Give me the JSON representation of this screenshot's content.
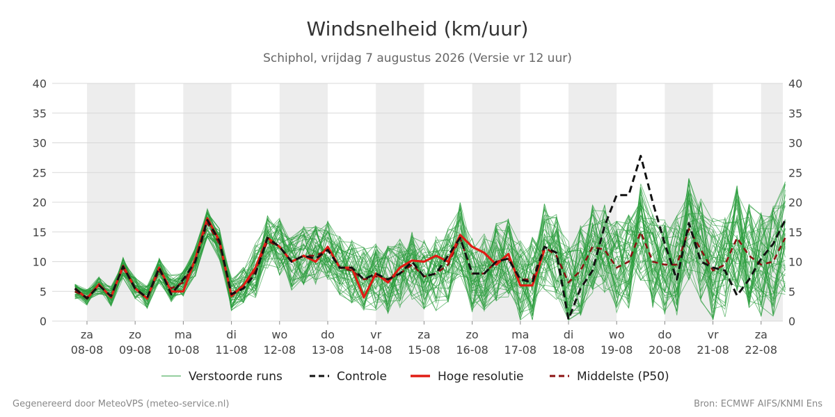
{
  "chart_data": {
    "type": "line",
    "title": "Windsnelheid (km/uur)",
    "subtitle": "Schiphol, vrijdag  7 augustus 2026 (Versie vr 12 uur)",
    "ylim": [
      0,
      40
    ],
    "yticks": [
      0,
      5,
      10,
      15,
      20,
      25,
      30,
      35,
      40
    ],
    "xlim_days": [
      -0.75,
      14.5
    ],
    "x_ticks": [
      {
        "day": "za",
        "date": "08-08"
      },
      {
        "day": "zo",
        "date": "09-08"
      },
      {
        "day": "ma",
        "date": "10-08"
      },
      {
        "day": "di",
        "date": "11-08"
      },
      {
        "day": "wo",
        "date": "12-08"
      },
      {
        "day": "do",
        "date": "13-08"
      },
      {
        "day": "vr",
        "date": "14-08"
      },
      {
        "day": "za",
        "date": "15-08"
      },
      {
        "day": "zo",
        "date": "16-08"
      },
      {
        "day": "ma",
        "date": "17-08"
      },
      {
        "day": "di",
        "date": "18-08"
      },
      {
        "day": "wo",
        "date": "19-08"
      },
      {
        "day": "do",
        "date": "20-08"
      },
      {
        "day": "vr",
        "date": "21-08"
      },
      {
        "day": "za",
        "date": "22-08"
      }
    ],
    "shaded_days": [
      0,
      2,
      4,
      6,
      8,
      10,
      12,
      14
    ],
    "grid": true,
    "legend_position": "bottom",
    "series": [
      {
        "name": "Controle",
        "color": "#111111",
        "style": "dashed",
        "x": [
          -0.25,
          0,
          0.25,
          0.5,
          0.75,
          1,
          1.25,
          1.5,
          1.75,
          2,
          2.25,
          2.5,
          2.75,
          3,
          3.25,
          3.5,
          3.75,
          4,
          4.25,
          4.5,
          4.75,
          5,
          5.25,
          5.5,
          5.75,
          6,
          6.25,
          6.5,
          6.75,
          7,
          7.25,
          7.5,
          7.75,
          8,
          8.25,
          8.5,
          8.75,
          9,
          9.25,
          9.5,
          9.75,
          10,
          10.25,
          10.5,
          10.75,
          11,
          11.25,
          11.5,
          11.75,
          12,
          12.25,
          12.5,
          12.75,
          13,
          13.25,
          13.5,
          13.75,
          14,
          14.25,
          14.5
        ],
        "values": [
          5.5,
          3.8,
          6,
          4.2,
          9.2,
          5.5,
          3.9,
          9,
          4.5,
          7,
          10,
          17,
          13.5,
          4.5,
          5.5,
          8,
          14,
          12.5,
          10,
          11,
          10.5,
          12,
          9,
          9,
          7,
          8,
          7,
          8,
          10,
          7.5,
          8,
          11,
          14,
          8,
          8,
          10,
          10.5,
          7,
          6.5,
          12.5,
          11.5,
          0.3,
          5.5,
          8.5,
          16,
          21.2,
          21.2,
          27.8,
          20,
          13,
          7,
          16.5,
          10,
          9,
          8.5,
          4.3,
          7,
          10.5,
          13,
          17
        ]
      },
      {
        "name": "Hoge resolutie",
        "color": "#e01c14",
        "style": "solid",
        "x": [
          -0.25,
          0,
          0.25,
          0.5,
          0.75,
          1,
          1.25,
          1.5,
          1.75,
          2,
          2.25,
          2.5,
          2.75,
          3,
          3.25,
          3.5,
          3.75,
          4,
          4.25,
          4.5,
          4.75,
          5,
          5.25,
          5.5,
          5.75,
          6,
          6.25,
          6.5,
          6.75,
          7,
          7.25,
          7.5,
          7.75,
          8,
          8.25,
          8.5,
          8.75,
          9,
          9.25,
          9.5
        ],
        "values": [
          5.5,
          3.8,
          6.2,
          4,
          9.3,
          5.5,
          3.8,
          9,
          5,
          5,
          10.5,
          17.3,
          13.5,
          4.2,
          6,
          9,
          14,
          12.5,
          10,
          11,
          10,
          12.5,
          9,
          9,
          4,
          8,
          6.5,
          9,
          10.2,
          10,
          11,
          10,
          14.5,
          12.5,
          11.5,
          9.5,
          11.3,
          6,
          6,
          12
        ]
      },
      {
        "name": "Middelste (P50)",
        "color": "#8b1010",
        "style": "dashed",
        "x": [
          -0.25,
          0,
          0.25,
          0.5,
          0.75,
          1,
          1.25,
          1.5,
          1.75,
          2,
          2.25,
          2.5,
          2.75,
          3,
          3.25,
          3.5,
          3.75,
          4,
          4.25,
          4.5,
          4.75,
          5,
          5.25,
          5.5,
          5.75,
          6,
          6.25,
          6.5,
          6.75,
          7,
          7.25,
          7.5,
          7.75,
          8,
          8.25,
          8.5,
          8.75,
          9,
          9.25,
          9.5,
          9.75,
          10,
          10.25,
          10.5,
          10.75,
          11,
          11.25,
          11.5,
          11.75,
          12,
          12.25,
          12.5,
          12.75,
          13,
          13.25,
          13.5,
          13.75,
          14,
          14.25,
          14.5
        ],
        "values": [
          5,
          4,
          6,
          4.2,
          9,
          5.5,
          4,
          8.5,
          5.5,
          6.5,
          10,
          16.5,
          13,
          4.5,
          6,
          8.5,
          13.5,
          12.5,
          10,
          11,
          11,
          12,
          9,
          8.5,
          7,
          7.5,
          7,
          8,
          9.5,
          7.5,
          8,
          9.5,
          14,
          8,
          8,
          10,
          10.5,
          7,
          7,
          12.5,
          11,
          6.5,
          8.5,
          12.5,
          12,
          9,
          10,
          15,
          10,
          9.5,
          9.5,
          15.5,
          12,
          8.5,
          9.5,
          14,
          11,
          9.5,
          10,
          14
        ]
      },
      {
        "name": "Verstoorde runs",
        "color": "#2a9d3c",
        "style": "thin",
        "ensemble": true,
        "members": 50
      }
    ]
  },
  "legend": [
    {
      "label": "Verstoorde runs",
      "color": "#2a9d3c",
      "style": "thin"
    },
    {
      "label": "Controle",
      "color": "#111111",
      "style": "dashed"
    },
    {
      "label": "Hoge resolutie",
      "color": "#e01c14",
      "style": "solid"
    },
    {
      "label": "Middelste (P50)",
      "color": "#8b1010",
      "style": "dashed"
    }
  ],
  "footer": {
    "left": "Gegenereerd door MeteoVPS (meteo-service.nl)",
    "right": "Bron: ECMWF AIFS/KNMI Ens"
  }
}
